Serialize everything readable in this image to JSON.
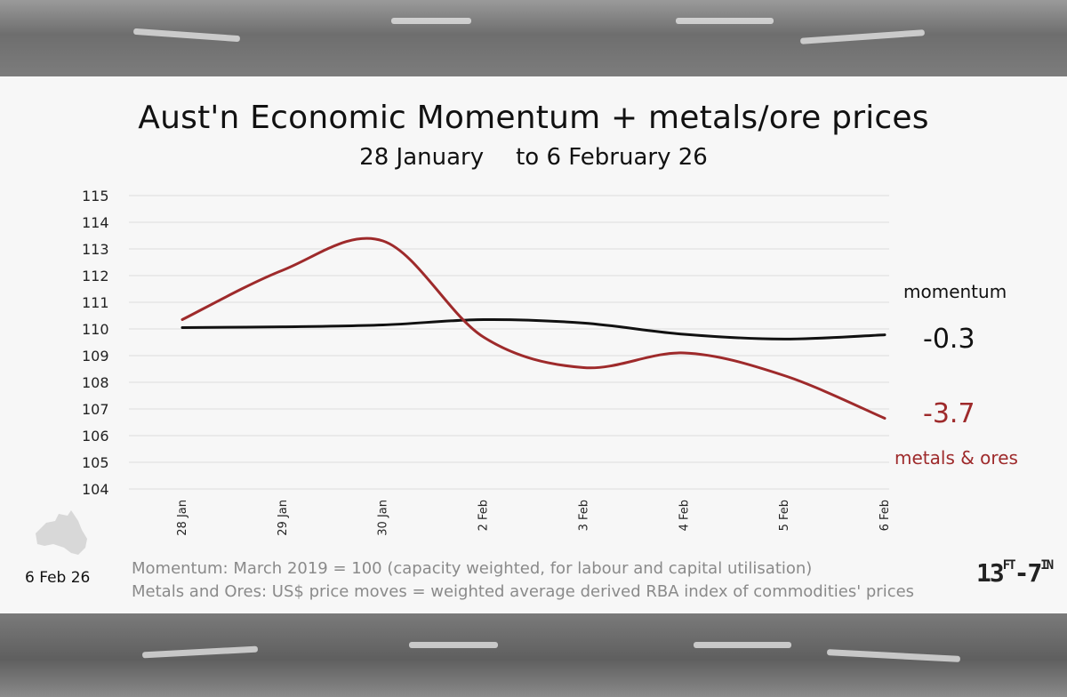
{
  "chart_data": {
    "type": "line",
    "title": "Aust'n Economic Momentum + metals/ore prices",
    "subtitle_from": "28 January",
    "subtitle_to": "to  6 February 26",
    "categories": [
      "28 Jan",
      "29 Jan",
      "30 Jan",
      "2 Feb",
      "3 Feb",
      "4 Feb",
      "5 Feb",
      "6 Feb"
    ],
    "ylim": [
      104,
      115
    ],
    "yticks": [
      104,
      105,
      106,
      107,
      108,
      109,
      110,
      111,
      112,
      113,
      114,
      115
    ],
    "grid": true,
    "series": [
      {
        "name": "momentum",
        "color": "#111111",
        "values": [
          110.05,
          110.08,
          110.15,
          110.35,
          110.22,
          109.8,
          109.62,
          109.78
        ],
        "end_label": "-0.3"
      },
      {
        "name": "metals & ores",
        "color": "#9e2a2b",
        "values": [
          110.35,
          112.2,
          113.3,
          109.7,
          108.55,
          109.1,
          108.25,
          106.65
        ],
        "end_label": "-3.7"
      }
    ]
  },
  "footer": {
    "date": "6 Feb 26",
    "note1": "Momentum:  March 2019 = 100 (capacity weighted, for labour and capital utilisation)",
    "note2": "Metals and Ores:  US$ price moves = weighted average derived RBA index of commodities' prices"
  },
  "logo": {
    "main": "13",
    "ft": "FT",
    "dash": "-",
    "seven": "7",
    "in": "IN"
  }
}
